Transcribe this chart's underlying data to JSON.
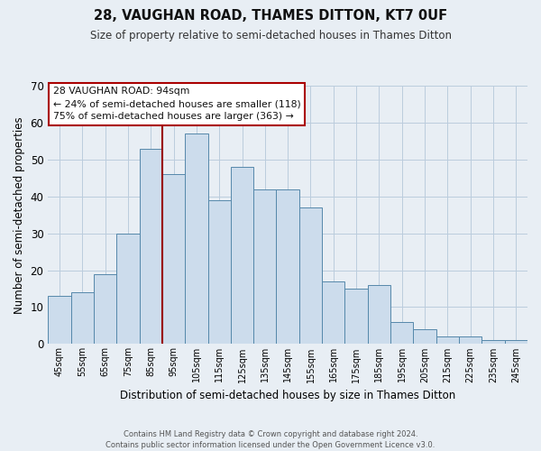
{
  "title": "28, VAUGHAN ROAD, THAMES DITTON, KT7 0UF",
  "subtitle": "Size of property relative to semi-detached houses in Thames Ditton",
  "xlabel": "Distribution of semi-detached houses by size in Thames Ditton",
  "ylabel": "Number of semi-detached properties",
  "categories": [
    "45sqm",
    "55sqm",
    "65sqm",
    "75sqm",
    "85sqm",
    "95sqm",
    "105sqm",
    "115sqm",
    "125sqm",
    "135sqm",
    "145sqm",
    "155sqm",
    "165sqm",
    "175sqm",
    "185sqm",
    "195sqm",
    "205sqm",
    "215sqm",
    "225sqm",
    "235sqm",
    "245sqm"
  ],
  "values": [
    13,
    14,
    19,
    30,
    53,
    46,
    57,
    39,
    48,
    42,
    42,
    37,
    17,
    15,
    16,
    6,
    4,
    2,
    2,
    1,
    1
  ],
  "bar_color": "#ccdcec",
  "bar_edgecolor": "#5588aa",
  "marker_bin_index": 5,
  "marker_color": "#990000",
  "ylim": [
    0,
    70
  ],
  "yticks": [
    0,
    10,
    20,
    30,
    40,
    50,
    60,
    70
  ],
  "annotation_title": "28 VAUGHAN ROAD: 94sqm",
  "annotation_line1": "← 24% of semi-detached houses are smaller (118)",
  "annotation_line2": "75% of semi-detached houses are larger (363) →",
  "annotation_box_color": "#ffffff",
  "annotation_border_color": "#aa0000",
  "footer_line1": "Contains HM Land Registry data © Crown copyright and database right 2024.",
  "footer_line2": "Contains public sector information licensed under the Open Government Licence v3.0.",
  "background_color": "#e8eef4",
  "plot_background_color": "#e8eef4",
  "grid_color": "#bbccdd"
}
